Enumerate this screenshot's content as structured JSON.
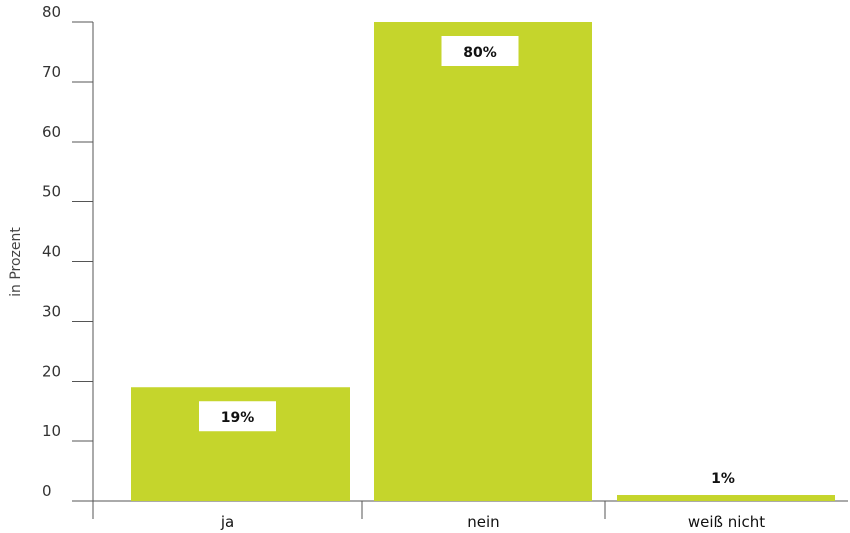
{
  "chart_data": {
    "type": "bar",
    "categories": [
      "ja",
      "nein",
      "weiß nicht"
    ],
    "values": [
      19,
      80,
      1
    ],
    "data_labels": [
      "19%",
      "80%",
      "1%"
    ],
    "title": "",
    "xlabel": "",
    "ylabel": "in Prozent",
    "ylim": [
      0,
      80
    ],
    "yticks": [
      0,
      10,
      20,
      30,
      40,
      50,
      60,
      70,
      80
    ],
    "grid": false,
    "legend": "none",
    "bar_color": "#c5d52c",
    "label_box_color": "#ffffff"
  }
}
